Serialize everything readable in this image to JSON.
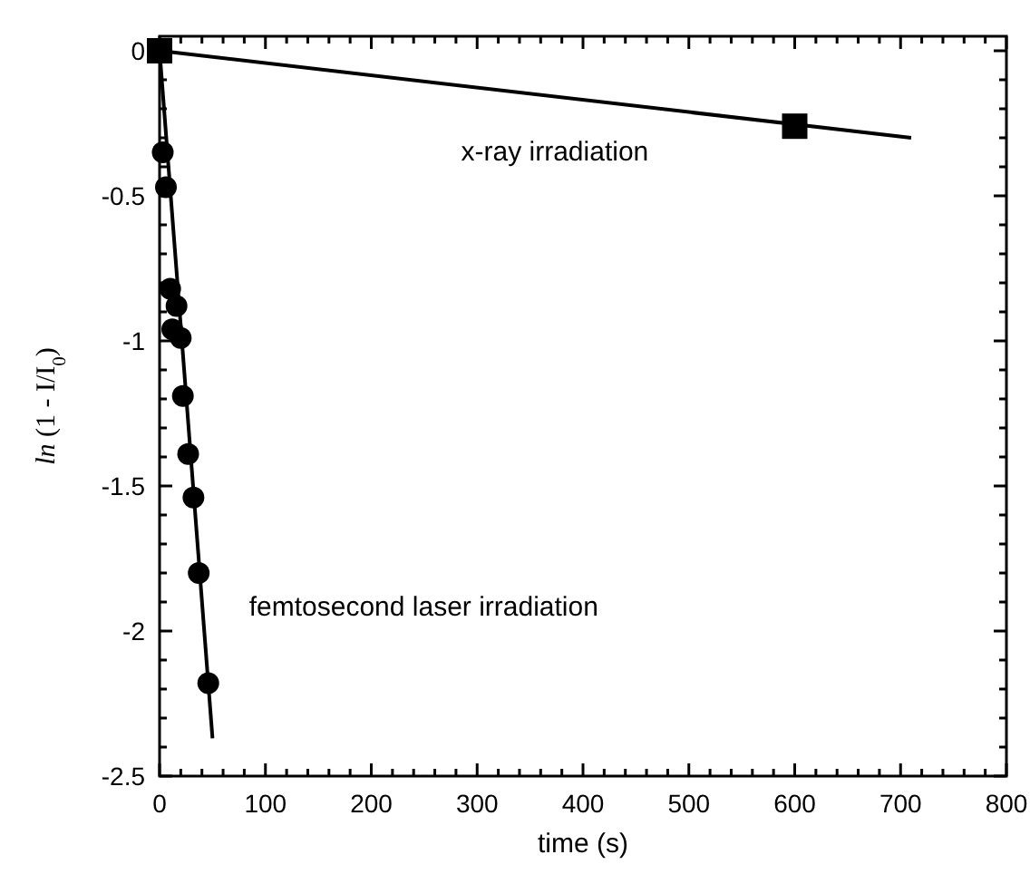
{
  "chart_data": {
    "type": "scatter",
    "xlabel": "time (s)",
    "ylabel": "ln (1 - I/I$_{0}$)",
    "xlim": [
      0,
      800
    ],
    "ylim": [
      -2.5,
      0.05
    ],
    "xticks": [
      0,
      100,
      200,
      300,
      400,
      500,
      600,
      700,
      800
    ],
    "yticks": [
      {
        "value": -2.5,
        "label": "-2.5"
      },
      {
        "value": -2,
        "label": "-2"
      },
      {
        "value": -1.5,
        "label": "-1.5"
      },
      {
        "value": -1,
        "label": "-1"
      },
      {
        "value": -0.5,
        "label": "-0.5"
      },
      {
        "value": 0,
        "label": "0"
      }
    ],
    "grid": false,
    "series": [
      {
        "type": "line",
        "color": "#000000",
        "marker": "none",
        "line_style": "solid",
        "x": [
          0,
          710
        ],
        "values": [
          0,
          -0.3
        ]
      },
      {
        "type": "line",
        "color": "#000000",
        "marker": "none",
        "line_style": "solid",
        "x": [
          0,
          50
        ],
        "values": [
          0,
          -2.37
        ]
      },
      {
        "color": "#000000",
        "marker": "square",
        "x": [
          0,
          600
        ],
        "values": [
          0,
          -0.26
        ]
      },
      {
        "color": "#000000",
        "marker": "circle",
        "x": [
          3,
          6,
          10,
          16,
          12,
          20,
          22,
          27,
          32,
          37,
          46
        ],
        "values": [
          -0.35,
          -0.47,
          -0.82,
          -0.88,
          -0.96,
          -0.99,
          -1.19,
          -1.39,
          -1.54,
          -1.8,
          -2.18
        ]
      }
    ],
    "annotations": [
      "x-ray irradiation",
      "femtosecond laser irradiation"
    ]
  }
}
